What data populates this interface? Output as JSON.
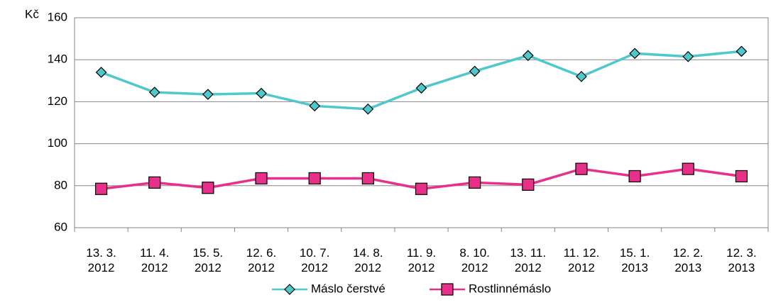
{
  "chart_data": {
    "type": "line",
    "y_unit": "Kč",
    "categories": [
      "13. 3. 2012",
      "11. 4. 2012",
      "15. 5. 2012",
      "12. 6. 2012",
      "10. 7. 2012",
      "14. 8. 2012",
      "11. 9. 2012",
      "8. 10. 2012",
      "13. 11. 2012",
      "11. 12. 2012",
      "15. 1. 2013",
      "12. 2. 2013",
      "12. 3. 2013"
    ],
    "series": [
      {
        "name": "Máslo čerstvé",
        "color": "#4fc8cc",
        "marker": "diamond",
        "values": [
          134,
          124.5,
          123.5,
          124,
          118,
          116.5,
          126.5,
          134.5,
          142,
          132,
          143,
          141.5,
          144
        ]
      },
      {
        "name": "Rostlinnémáslo",
        "color": "#e8308a",
        "marker": "square",
        "values": [
          78.5,
          81.5,
          79,
          83.5,
          83.5,
          83.5,
          78.5,
          81.5,
          80.5,
          88,
          84.5,
          88,
          84.5
        ]
      }
    ],
    "ylim": [
      60,
      160
    ],
    "yticks": [
      60,
      80,
      100,
      120,
      140,
      160
    ],
    "grid": true,
    "legend": "bottom"
  }
}
